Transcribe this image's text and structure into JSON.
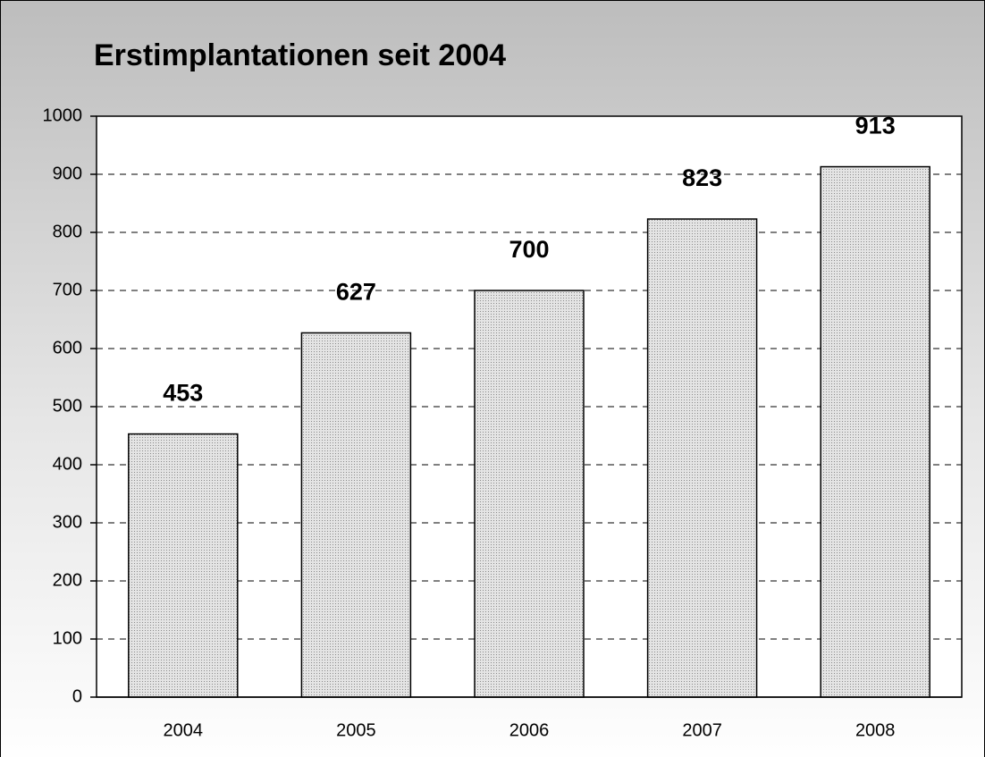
{
  "chart_data": {
    "type": "bar",
    "title": "Erstimplantationen seit 2004",
    "categories": [
      "2004",
      "2005",
      "2006",
      "2007",
      "2008"
    ],
    "values": [
      453,
      627,
      700,
      823,
      913
    ],
    "color": "#d0d0d0",
    "ylim": [
      0,
      1000
    ],
    "yticks": [
      0,
      100,
      200,
      300,
      400,
      500,
      600,
      700,
      800,
      900,
      1000
    ],
    "grid": true
  }
}
